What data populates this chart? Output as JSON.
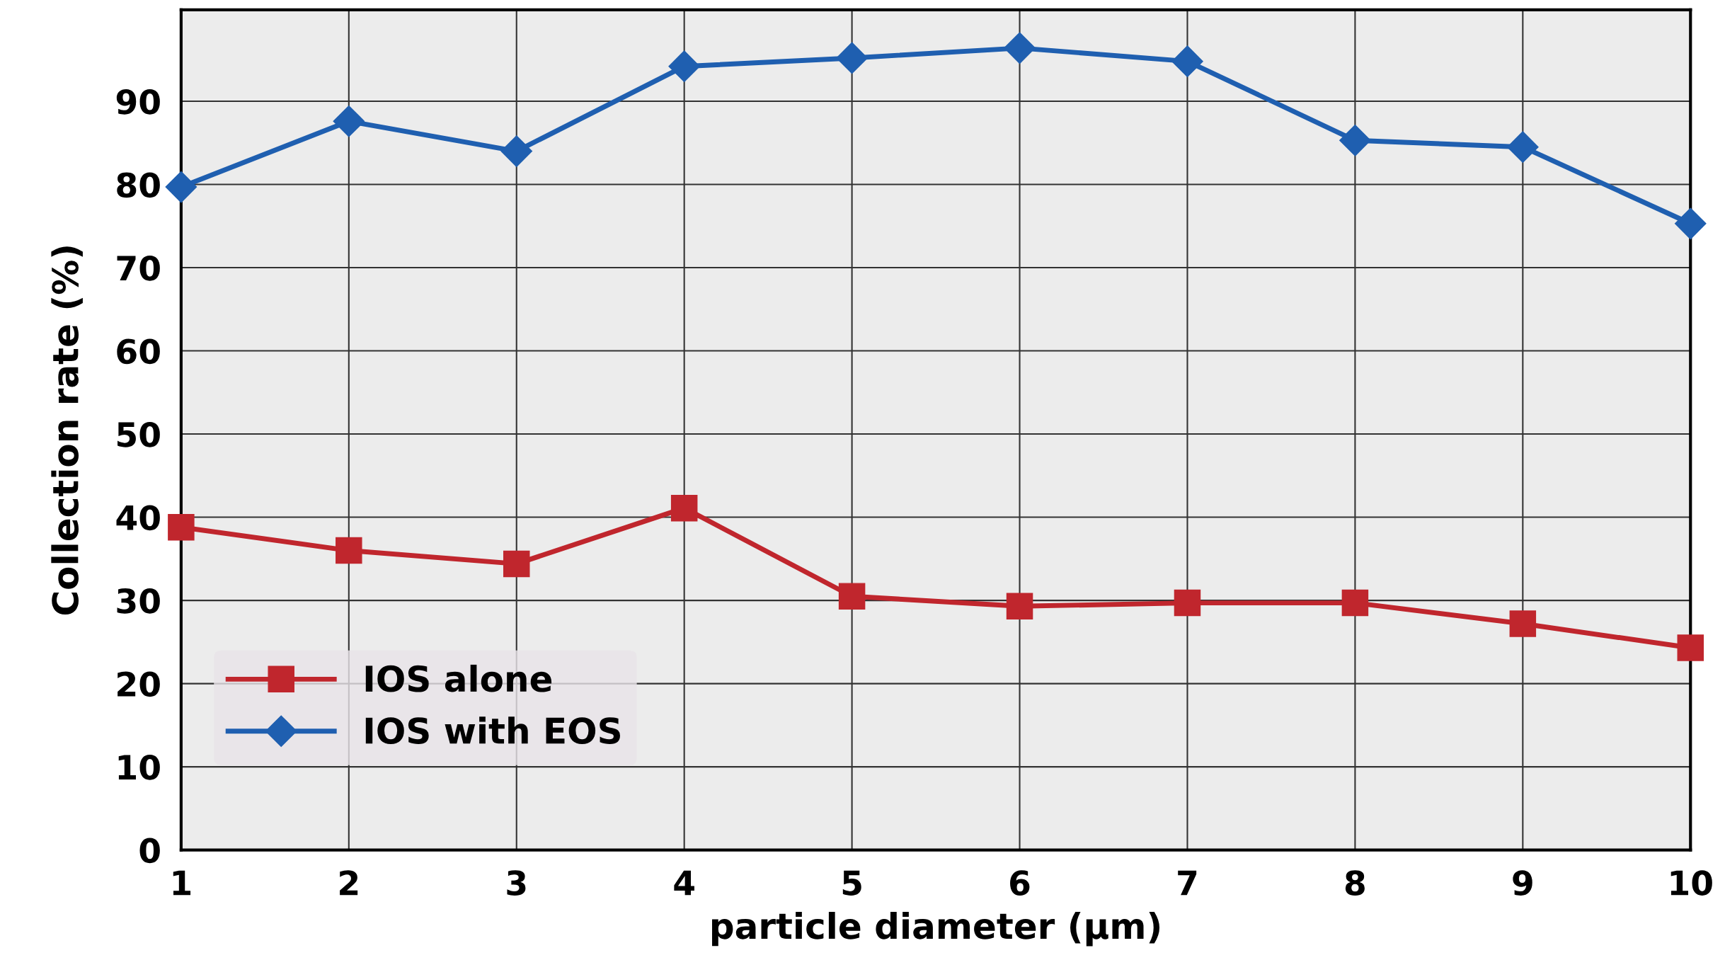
{
  "chart_data": {
    "type": "line",
    "xlabel": "particle diameter (µm)",
    "ylabel": "Collection rate (%)",
    "x": [
      1,
      2,
      3,
      4,
      5,
      6,
      7,
      8,
      9,
      10
    ],
    "series": [
      {
        "name": "IOS alone",
        "color": "#c0262d",
        "marker": "square",
        "values": [
          38.8,
          36,
          34.4,
          41.1,
          30.5,
          29.3,
          29.7,
          29.7,
          27.2,
          24.3
        ]
      },
      {
        "name": "IOS with EOS",
        "color": "#1f5fb0",
        "marker": "diamond",
        "values": [
          79.7,
          87.6,
          84,
          94.2,
          95.2,
          96.4,
          94.8,
          85.3,
          84.5,
          75.3
        ]
      }
    ],
    "xlim": [
      1,
      10
    ],
    "xticks": [
      1,
      2,
      3,
      4,
      5,
      6,
      7,
      8,
      9,
      10
    ],
    "ylim": [
      0,
      101
    ],
    "yticks": [
      0,
      10,
      20,
      30,
      40,
      50,
      60,
      70,
      80,
      90
    ],
    "grid": true,
    "legend": "bottom left",
    "line_style": "solid"
  }
}
